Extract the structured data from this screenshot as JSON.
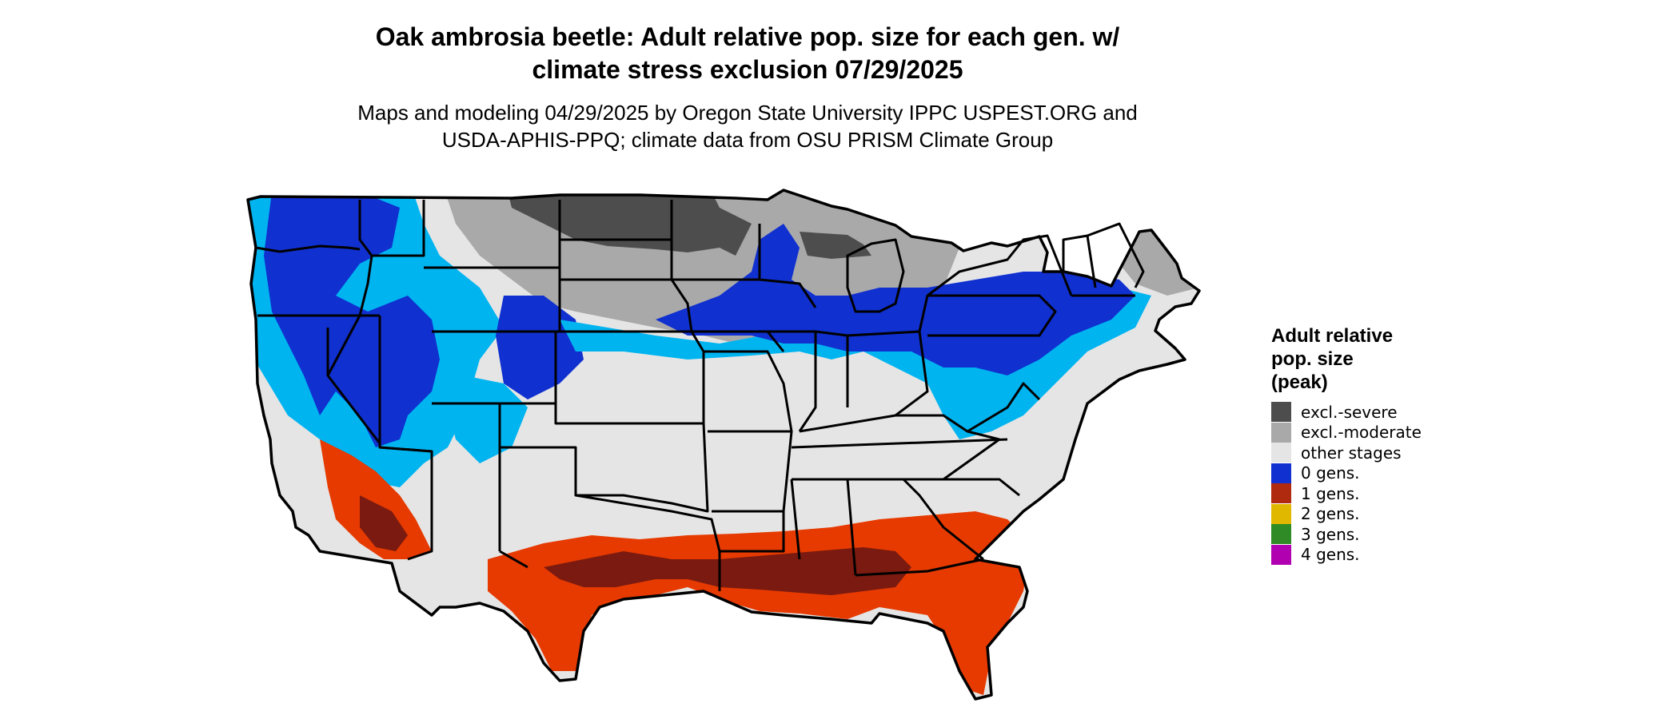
{
  "title": {
    "line1": "Oak ambrosia beetle: Adult relative pop. size for each gen. w/",
    "line2": "climate stress exclusion 07/29/2025"
  },
  "subtitle": {
    "line1": "Maps and modeling 04/29/2025 by Oregon State University IPPC USPEST.ORG and",
    "line2": "USDA-APHIS-PPQ; climate data from OSU PRISM Climate Group"
  },
  "legend": {
    "title_line1": "Adult relative",
    "title_line2": "pop. size",
    "title_line3": "(peak)",
    "items": [
      {
        "label": "excl.-severe",
        "color": "#4d4d4d"
      },
      {
        "label": "excl.-moderate",
        "color": "#a9a9a9"
      },
      {
        "label": "other stages",
        "color": "#e5e5e5"
      },
      {
        "label": "0 gens.",
        "color": "#1030d0"
      },
      {
        "label": "1 gens.",
        "color": "#b02a10"
      },
      {
        "label": "2 gens.",
        "color": "#e0b800"
      },
      {
        "label": "3 gens.",
        "color": "#2e8b25"
      },
      {
        "label": "4 gens.",
        "color": "#b000b0"
      }
    ]
  },
  "map": {
    "region": "Contiguous United States",
    "colors": {
      "excl_severe": "#4d4d4d",
      "excl_moderate": "#a9a9a9",
      "other_stages": "#e5e5e5",
      "zero_gens_dark": "#1030d0",
      "zero_gens_light": "#00b4f0",
      "one_gen_dark": "#7a1a10",
      "one_gen_light": "#e63a00",
      "border": "#000000"
    }
  }
}
